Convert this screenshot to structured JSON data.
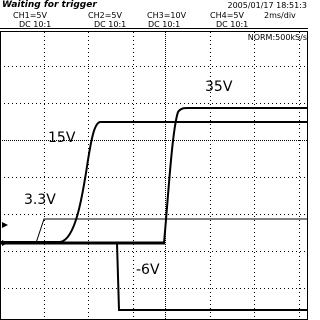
{
  "status": {
    "message": "Waiting for trigger",
    "datetime": "2005/01/17 18:51:3"
  },
  "channels": [
    {
      "scale": "CH1=5V",
      "coupling": "DC  10:1"
    },
    {
      "scale": "CH2=5V",
      "coupling": "DC  10:1"
    },
    {
      "scale": "CH3=10V",
      "coupling": "DC  10:1"
    },
    {
      "scale": "CH4=5V",
      "coupling": "DC  10:1"
    }
  ],
  "timebase": "2ms/div",
  "acquisition": "NORM:500kS/s",
  "annotations": [
    "35V",
    "15V",
    "3.3V",
    "-6V"
  ]
}
